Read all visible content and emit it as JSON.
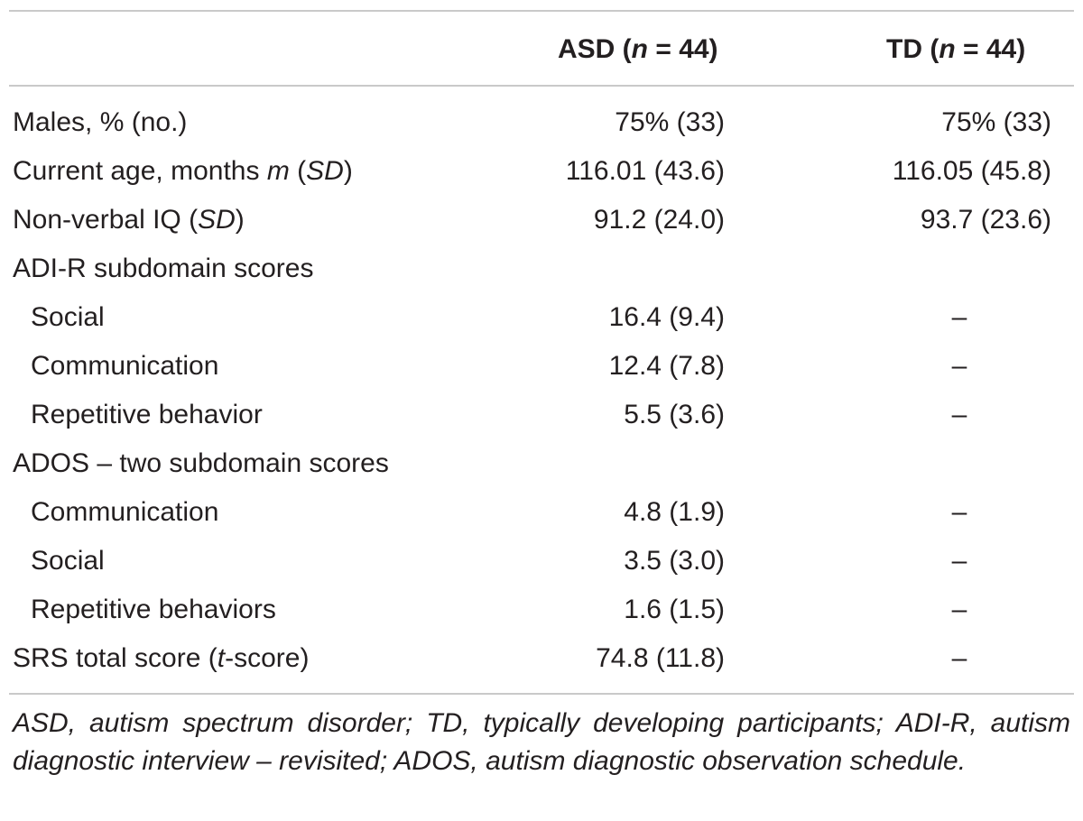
{
  "header": {
    "col_asd_prefix": "ASD (",
    "col_asd_n": "n",
    "col_asd_suffix": " = 44)",
    "col_td_prefix": "TD (",
    "col_td_n": "n",
    "col_td_suffix": " = 44)"
  },
  "rows": [
    {
      "label": "Males, % (no.)",
      "asd": "75% (33)",
      "td": "75% (33)"
    },
    {
      "label_a": "Current age, months ",
      "label_m": "m",
      "label_b": " (",
      "label_sd": "SD",
      "label_c": ")",
      "asd": "116.01 (43.6)",
      "td": "116.05 (45.8)"
    },
    {
      "label_a": "Non-verbal IQ (",
      "label_sd": "SD",
      "label_c": ")",
      "asd": "91.2 (24.0)",
      "td": "93.7 (23.6)"
    },
    {
      "label": "ADI-R subdomain scores"
    },
    {
      "label": "Social",
      "asd": "16.4 (9.4)",
      "td": "–"
    },
    {
      "label": "Communication",
      "asd": "12.4 (7.8)",
      "td": "–"
    },
    {
      "label": "Repetitive behavior",
      "asd": "5.5 (3.6)",
      "td": "–"
    },
    {
      "label": "ADOS – two subdomain scores"
    },
    {
      "label": "Communication",
      "asd": "4.8 (1.9)",
      "td": "–"
    },
    {
      "label": "Social",
      "asd": "3.5 (3.0)",
      "td": "–"
    },
    {
      "label": "Repetitive behaviors",
      "asd": "1.6 (1.5)",
      "td": "–"
    },
    {
      "label_a": "SRS total score (",
      "label_t": "t",
      "label_c": "-score)",
      "asd": "74.8 (11.8)",
      "td": "–"
    }
  ],
  "footnote": "ASD, autism spectrum disorder; TD, typically developing participants; ADI-R, autism diagnostic interview – revisited; ADOS, autism diagnostic observation schedule."
}
